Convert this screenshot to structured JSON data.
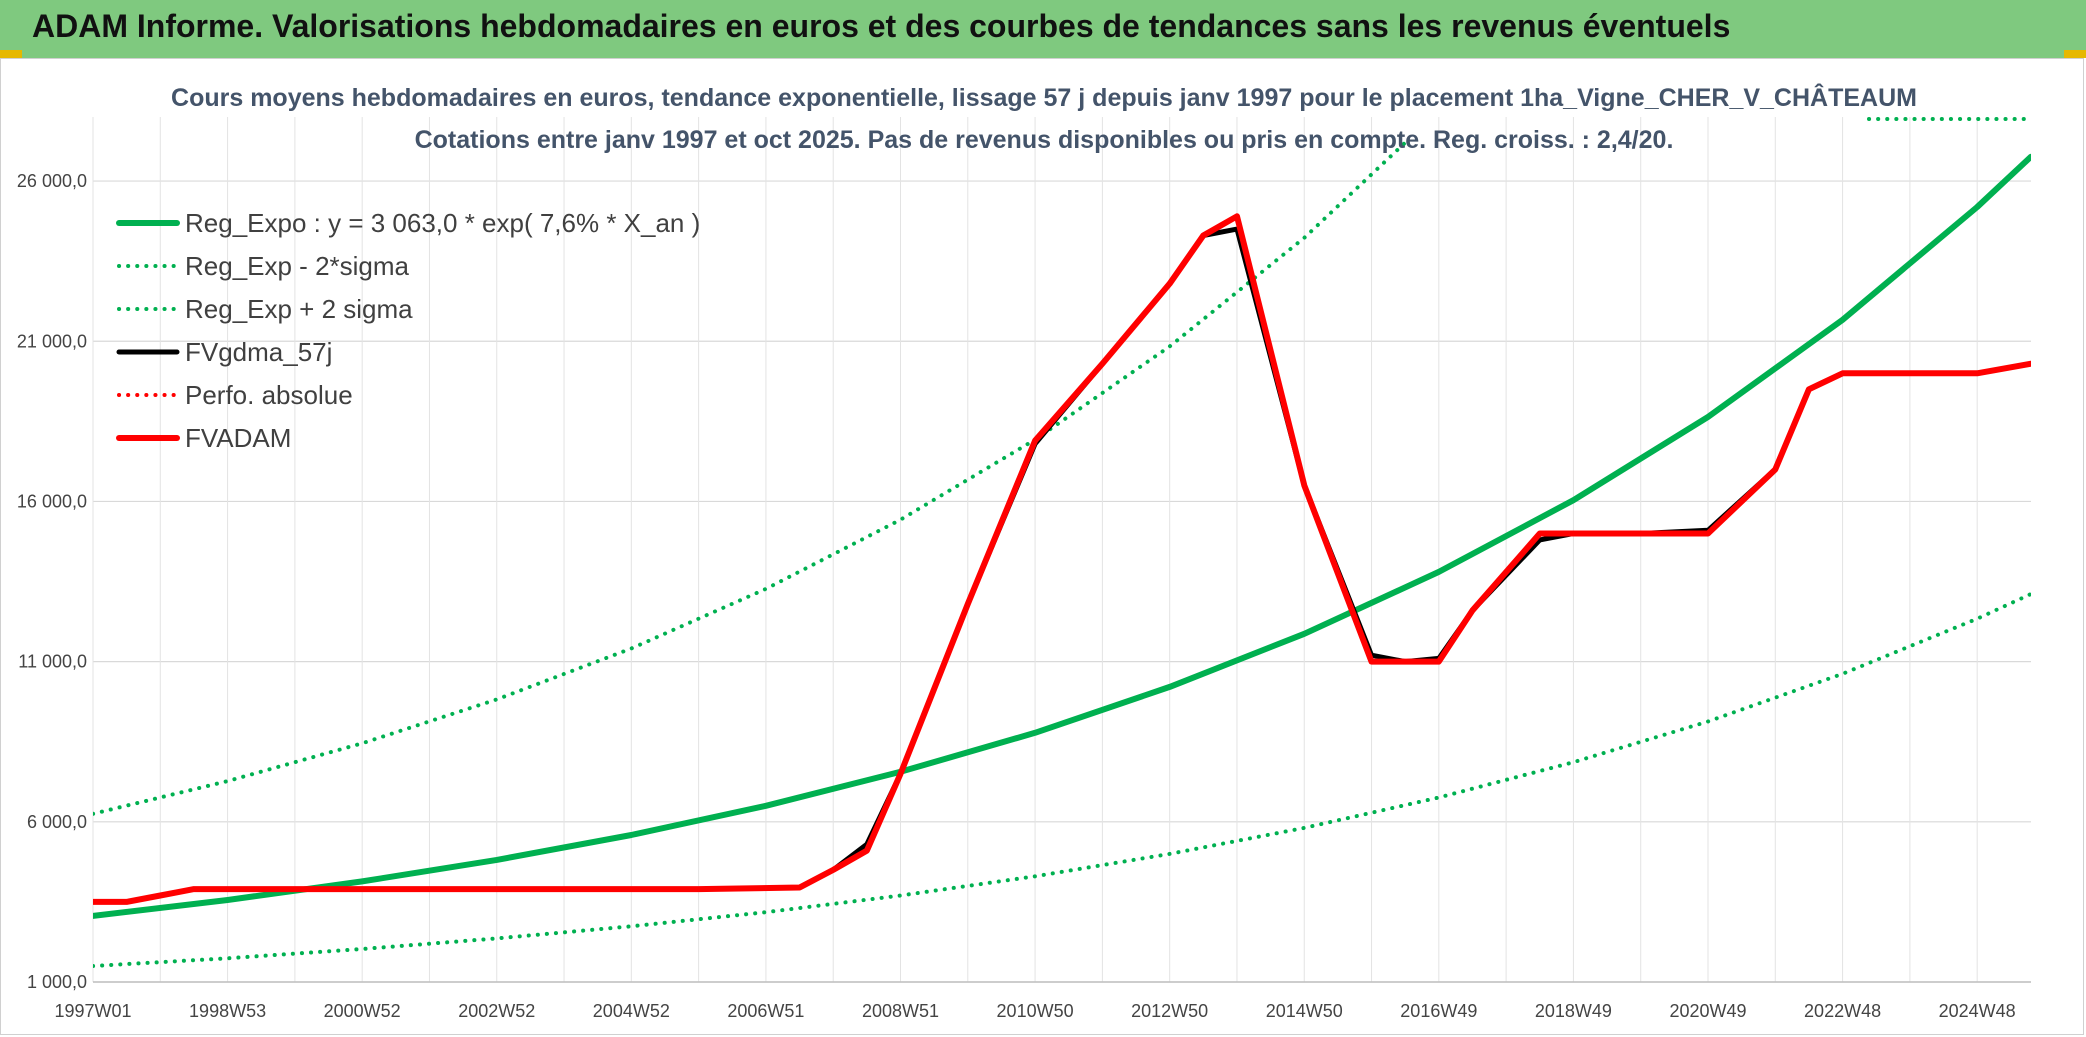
{
  "header": {
    "title": "ADAM Informe. Valorisations hebdomadaires en euros et des courbes de tendances sans les revenus éventuels"
  },
  "chart_data": {
    "type": "line",
    "title": "Cours moyens hebdomadaires en euros, tendance exponentielle, lissage 57 j depuis janv 1997 pour le placement 1ha_Vigne_CHER_V_CHÂTEAUM",
    "subtitle": "Cotations entre janv 1997 et oct 2025. Pas de revenus disponibles ou pris en compte. Reg. croiss. : 2,4/20.",
    "xlabel": "",
    "ylabel": "",
    "ylim": [
      1000,
      28000
    ],
    "xlim": [
      1997.0,
      2025.8
    ],
    "yticks": [
      1000,
      6000,
      11000,
      16000,
      21000,
      26000
    ],
    "ytick_labels": [
      "1 000,0",
      "6 000,0",
      "11 000,0",
      "16 000,0",
      "21 000,0",
      "26 000,0"
    ],
    "xticks": [
      1997.0,
      1999.0,
      2001.0,
      2003.0,
      2005.0,
      2007.0,
      2009.0,
      2011.0,
      2013.0,
      2015.0,
      2017.0,
      2019.0,
      2021.0,
      2023.0,
      2025.0
    ],
    "xtick_labels": [
      "1997W01",
      "1998W53",
      "2000W52",
      "2002W52",
      "2004W52",
      "2006W51",
      "2008W51",
      "2010W50",
      "2012W50",
      "2014W50",
      "2016W49",
      "2018W49",
      "2020W49",
      "2022W48",
      "2024W48"
    ],
    "grid": true,
    "legend_position": "top-left",
    "series": [
      {
        "name": "Reg_Expo : y = 3 063,0 * exp( 7,6% *  X_an )",
        "style": "solid-thick",
        "color": "#00b050",
        "x": [
          1997.0,
          1999.0,
          2001.0,
          2003.0,
          2005.0,
          2007.0,
          2009.0,
          2011.0,
          2013.0,
          2015.0,
          2017.0,
          2019.0,
          2021.0,
          2023.0,
          2025.0,
          2025.8
        ],
        "y": [
          3063,
          3560,
          4140,
          4810,
          5590,
          6500,
          7560,
          8780,
          10210,
          11870,
          13800,
          16040,
          18640,
          21670,
          25190,
          26760
        ]
      },
      {
        "name": "Reg_Exp - 2*sigma",
        "style": "dotted",
        "color": "#00b050",
        "x": [
          1997.0,
          1999.0,
          2001.0,
          2003.0,
          2005.0,
          2007.0,
          2009.0,
          2011.0,
          2013.0,
          2015.0,
          2017.0,
          2019.0,
          2021.0,
          2023.0,
          2025.0,
          2025.8
        ],
        "y": [
          1500,
          1740,
          2030,
          2360,
          2740,
          3180,
          3700,
          4300,
          5000,
          5810,
          6760,
          7860,
          9130,
          10620,
          12340,
          13110
        ]
      },
      {
        "name": "Reg_Exp + 2 sigma",
        "style": "dotted",
        "color": "#00b050",
        "x": [
          1997.0,
          1999.0,
          2001.0,
          2003.0,
          2005.0,
          2007.0,
          2009.0,
          2011.0,
          2013.0,
          2015.0,
          2016.5
        ],
        "y": [
          6250,
          7270,
          8450,
          9820,
          11410,
          13270,
          15430,
          17930,
          20840,
          24230,
          27200
        ]
      },
      {
        "name": "FVgdma_57j",
        "style": "solid",
        "color": "#000000",
        "x": [
          1997.0,
          1997.5,
          1998.0,
          1998.5,
          2000.0,
          2002.0,
          2004.0,
          2006.0,
          2007.5,
          2008.0,
          2008.5,
          2009.0,
          2010.0,
          2011.0,
          2012.0,
          2013.0,
          2013.5,
          2014.0,
          2015.0,
          2016.0,
          2016.5,
          2017.0,
          2017.5,
          2018.5,
          2019.0,
          2020.0,
          2021.0,
          2022.0,
          2022.5,
          2023.0,
          2024.0,
          2025.0,
          2025.8
        ],
        "y": [
          3500,
          3500,
          3700,
          3900,
          3900,
          3900,
          3900,
          3900,
          3950,
          4500,
          5300,
          7500,
          12800,
          17800,
          20300,
          22800,
          24300,
          24500,
          16500,
          11200,
          11000,
          11100,
          12600,
          14800,
          15000,
          15000,
          15100,
          17000,
          19500,
          20000,
          20000,
          20000,
          20300
        ]
      },
      {
        "name": "Perfo. absolue",
        "style": "dotted",
        "color": "#ff0000",
        "x": [
          1997.0,
          1997.5,
          1998.0,
          1998.5,
          2000.0,
          2002.0,
          2004.0,
          2006.0,
          2007.5,
          2008.0,
          2008.5,
          2009.0,
          2010.0,
          2011.0,
          2012.0,
          2013.0,
          2013.5,
          2014.0,
          2015.0,
          2016.0,
          2016.5,
          2017.0,
          2017.5,
          2018.5,
          2019.0,
          2020.0,
          2021.0,
          2022.0,
          2022.5,
          2023.0,
          2024.0,
          2025.0,
          2025.8
        ],
        "y": [
          3500,
          3500,
          3700,
          3900,
          3900,
          3900,
          3900,
          3900,
          3950,
          4500,
          5100,
          7500,
          12800,
          17900,
          20300,
          22800,
          24300,
          24900,
          16500,
          11000,
          11000,
          11000,
          12600,
          15000,
          15000,
          15000,
          15000,
          17000,
          19500,
          20000,
          20000,
          20000,
          20300
        ]
      },
      {
        "name": "FVADAM",
        "style": "solid-thick",
        "color": "#ff0000",
        "x": [
          1997.0,
          1997.5,
          1998.0,
          1998.5,
          2000.0,
          2002.0,
          2004.0,
          2006.0,
          2007.5,
          2008.0,
          2008.5,
          2009.0,
          2010.0,
          2011.0,
          2012.0,
          2013.0,
          2013.5,
          2014.0,
          2015.0,
          2016.0,
          2016.5,
          2017.0,
          2017.5,
          2018.5,
          2019.0,
          2020.0,
          2021.0,
          2022.0,
          2022.5,
          2023.0,
          2024.0,
          2025.0,
          2025.8
        ],
        "y": [
          3500,
          3500,
          3700,
          3900,
          3900,
          3900,
          3900,
          3900,
          3950,
          4500,
          5100,
          7500,
          12800,
          17900,
          20300,
          22800,
          24300,
          24900,
          16500,
          11000,
          11000,
          11000,
          12600,
          15000,
          15000,
          15000,
          15000,
          17000,
          19500,
          20000,
          20000,
          20000,
          20300
        ]
      }
    ]
  }
}
